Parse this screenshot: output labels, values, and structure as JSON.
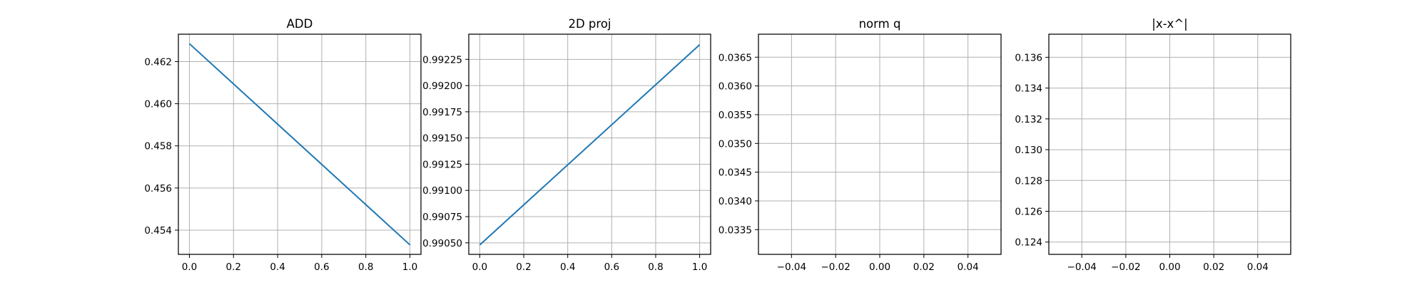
{
  "figure": {
    "chart_data": [
      {
        "type": "line",
        "title": "ADD",
        "xlabel": "",
        "ylabel": "",
        "grid": true,
        "xlim": [
          -0.05,
          1.05
        ],
        "ylim": [
          0.45285,
          0.4633
        ],
        "xticks": [
          0.0,
          0.2,
          0.4,
          0.6,
          0.8,
          1.0
        ],
        "xticklabels": [
          "0.0",
          "0.2",
          "0.4",
          "0.6",
          "0.8",
          "1.0"
        ],
        "yticks": [
          0.454,
          0.456,
          0.458,
          0.46,
          0.462
        ],
        "yticklabels": [
          "0.454",
          "0.456",
          "0.458",
          "0.460",
          "0.462"
        ],
        "series": [
          {
            "color": "#1f77b4",
            "x": [
              0.0,
              1.0
            ],
            "y": [
              0.46285,
              0.4533
            ]
          }
        ]
      },
      {
        "type": "line",
        "title": "2D proj",
        "xlabel": "",
        "ylabel": "",
        "grid": true,
        "xlim": [
          -0.05,
          1.05
        ],
        "ylim": [
          0.99039,
          0.99249
        ],
        "xticks": [
          0.0,
          0.2,
          0.4,
          0.6,
          0.8,
          1.0
        ],
        "xticklabels": [
          "0.0",
          "0.2",
          "0.4",
          "0.6",
          "0.8",
          "1.0"
        ],
        "yticks": [
          0.9905,
          0.99075,
          0.991,
          0.99125,
          0.9915,
          0.99175,
          0.992,
          0.99225
        ],
        "yticklabels": [
          "0.99050",
          "0.99075",
          "0.99100",
          "0.99125",
          "0.99150",
          "0.99175",
          "0.99200",
          "0.99225"
        ],
        "series": [
          {
            "color": "#1f77b4",
            "x": [
              0.0,
              1.0
            ],
            "y": [
              0.99048,
              0.99239
            ]
          }
        ]
      },
      {
        "type": "line",
        "title": "norm q",
        "xlabel": "",
        "ylabel": "",
        "grid": true,
        "xlim": [
          -0.055,
          0.055
        ],
        "ylim": [
          0.03307,
          0.0369
        ],
        "xticks": [
          -0.04,
          -0.02,
          0.0,
          0.02,
          0.04
        ],
        "xticklabels": [
          "−0.04",
          "−0.02",
          "0.00",
          "0.02",
          "0.04"
        ],
        "yticks": [
          0.0335,
          0.034,
          0.0345,
          0.035,
          0.0355,
          0.036,
          0.0365
        ],
        "yticklabels": [
          "0.0335",
          "0.0340",
          "0.0345",
          "0.0350",
          "0.0355",
          "0.0360",
          "0.0365"
        ],
        "series": []
      },
      {
        "type": "line",
        "title": "|x-x^|",
        "xlabel": "",
        "ylabel": "",
        "grid": true,
        "xlim": [
          -0.055,
          0.055
        ],
        "ylim": [
          0.1232,
          0.1375
        ],
        "xticks": [
          -0.04,
          -0.02,
          0.0,
          0.02,
          0.04
        ],
        "xticklabels": [
          "−0.04",
          "−0.02",
          "0.00",
          "0.02",
          "0.04"
        ],
        "yticks": [
          0.124,
          0.126,
          0.128,
          0.13,
          0.132,
          0.134,
          0.136
        ],
        "yticklabels": [
          "0.124",
          "0.126",
          "0.128",
          "0.130",
          "0.132",
          "0.134",
          "0.136"
        ],
        "series": []
      }
    ]
  }
}
